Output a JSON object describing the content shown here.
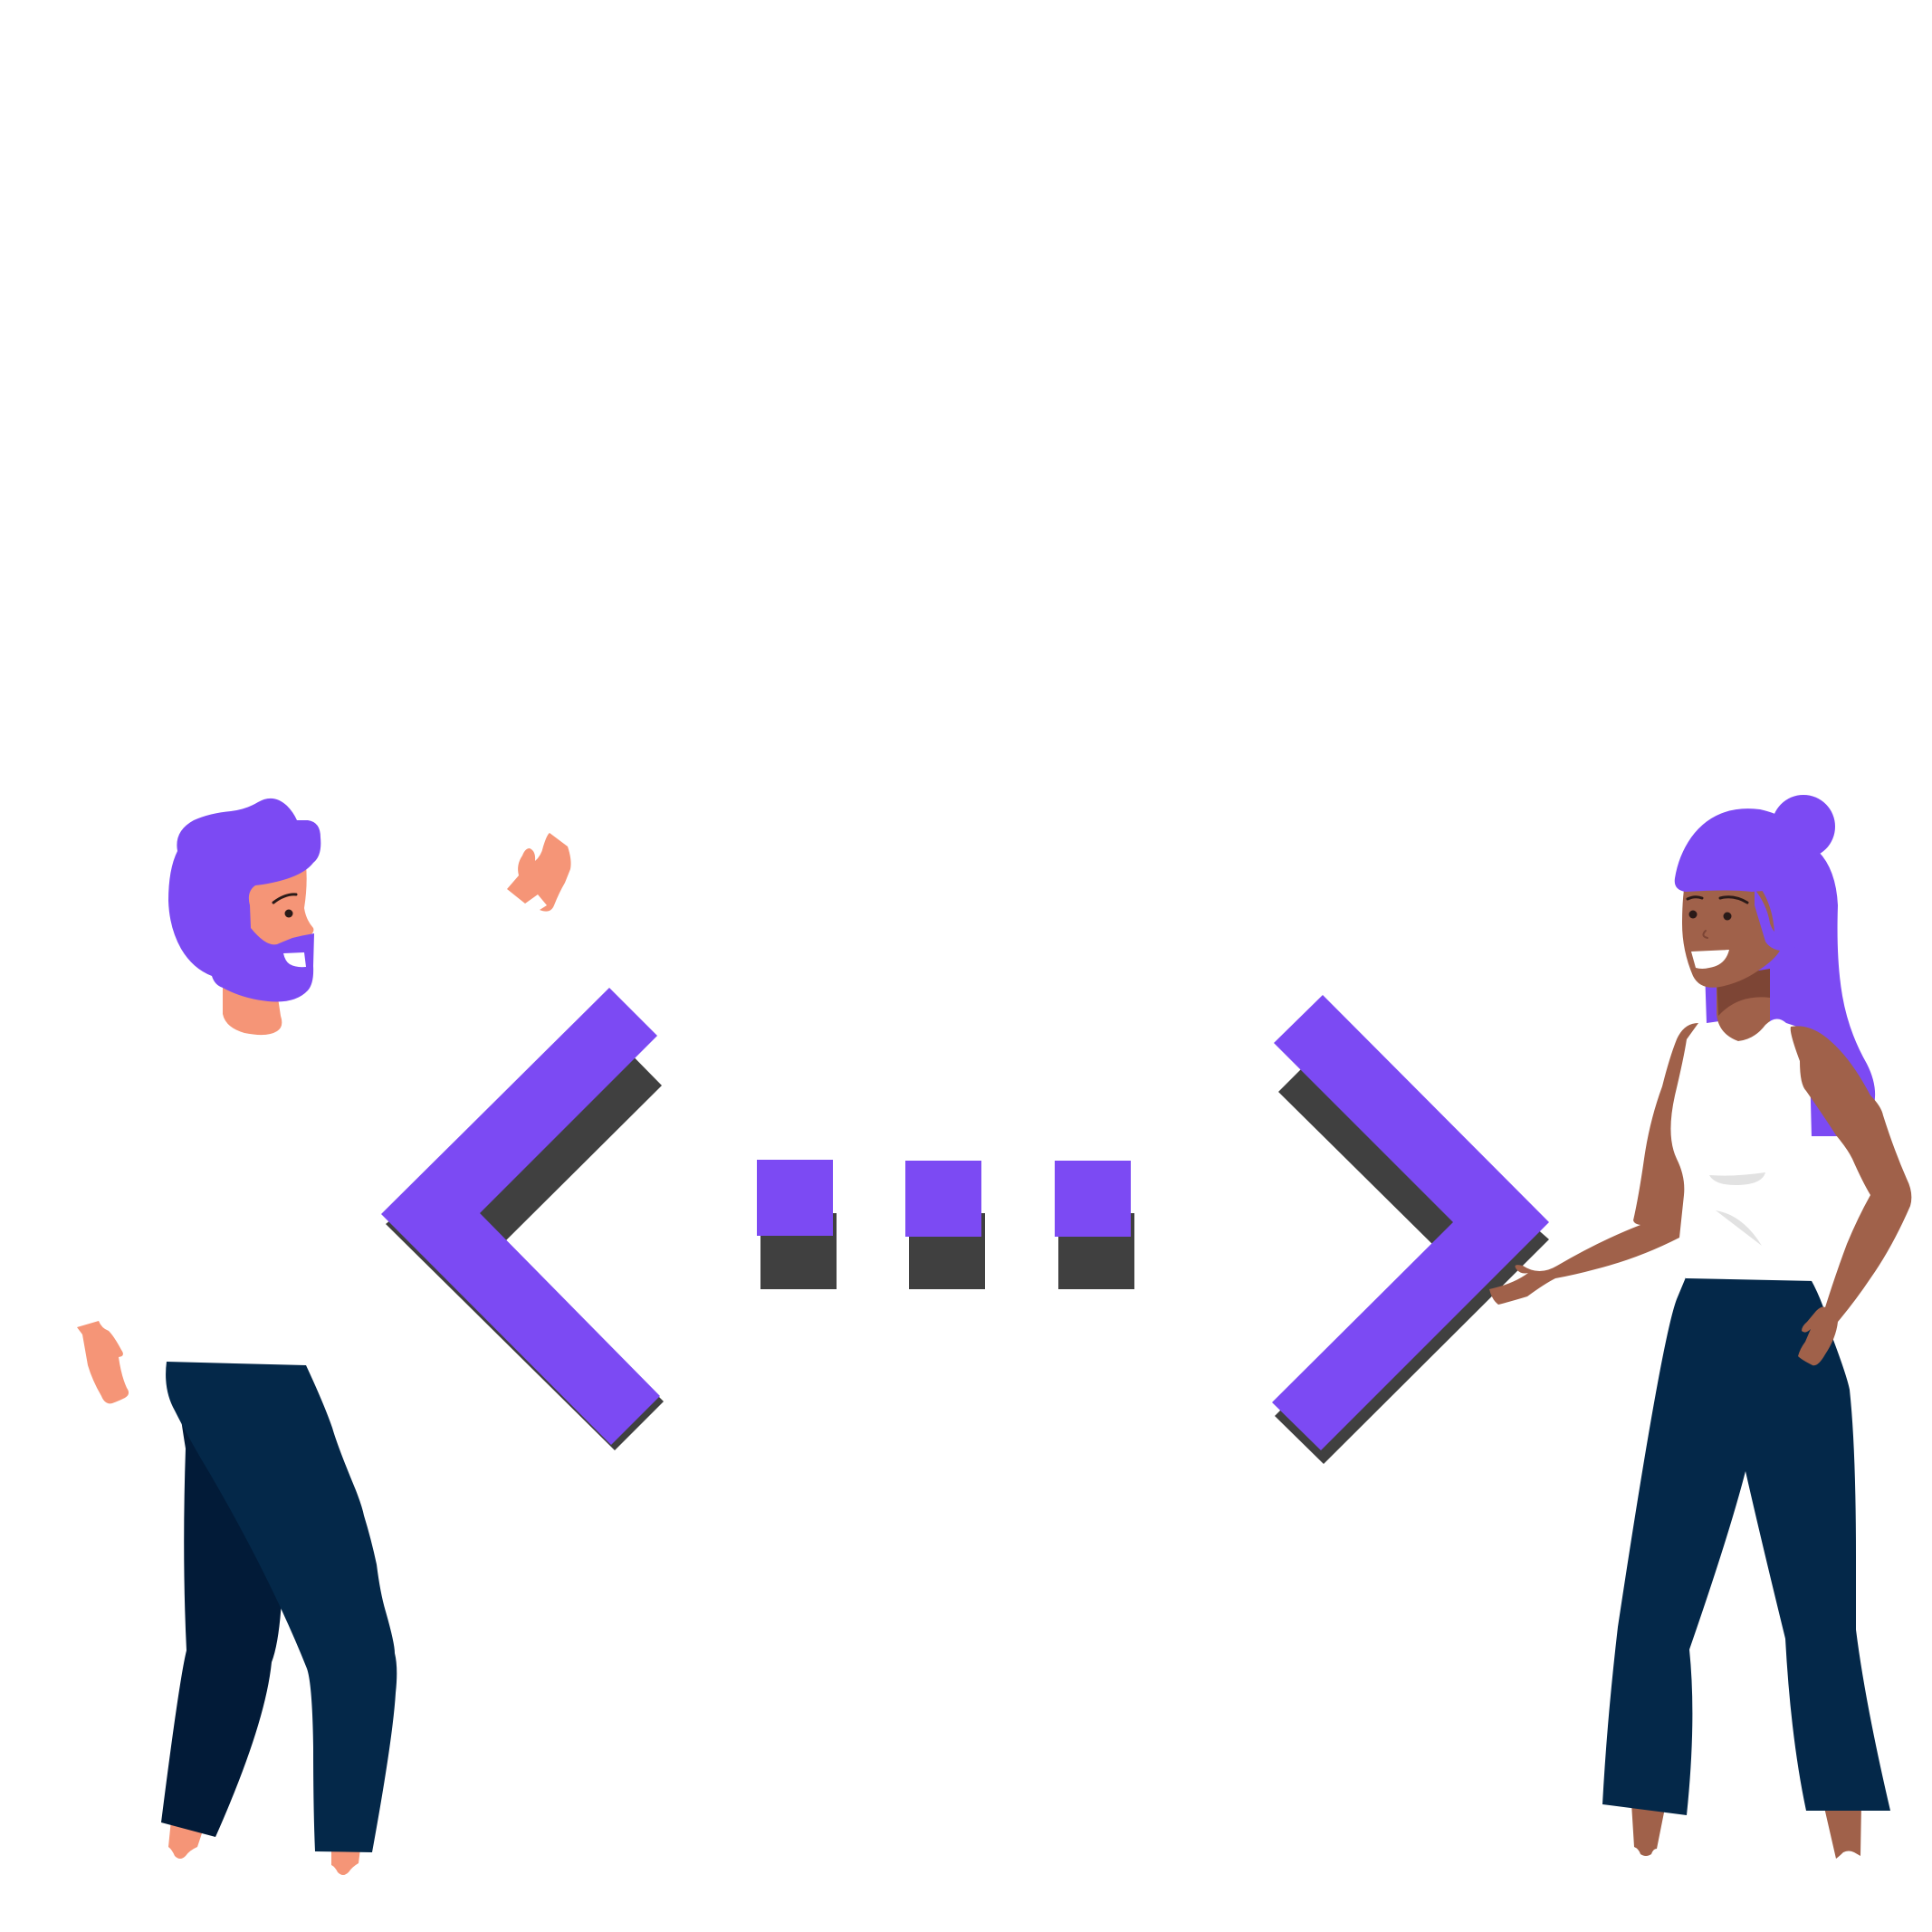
{
  "illustration": {
    "subject": "code-collaboration",
    "colors": {
      "background": "#ffffff",
      "accent": "#7c4af3",
      "shadow": "#404040",
      "navy": "#042849",
      "navy_dark": "#021b38",
      "skin_light": "#f59577",
      "skin_dark": "#a0614a",
      "skin_dark_shade": "#7d4535",
      "shirt_white": "#ffffff",
      "eye": "#2a1a18",
      "shirt_detail": "#e2e2e2"
    },
    "icons": [
      "left-chevron-icon",
      "ellipsis-icon",
      "right-chevron-icon"
    ],
    "figures": [
      "man-with-beard",
      "woman-with-bun"
    ]
  }
}
